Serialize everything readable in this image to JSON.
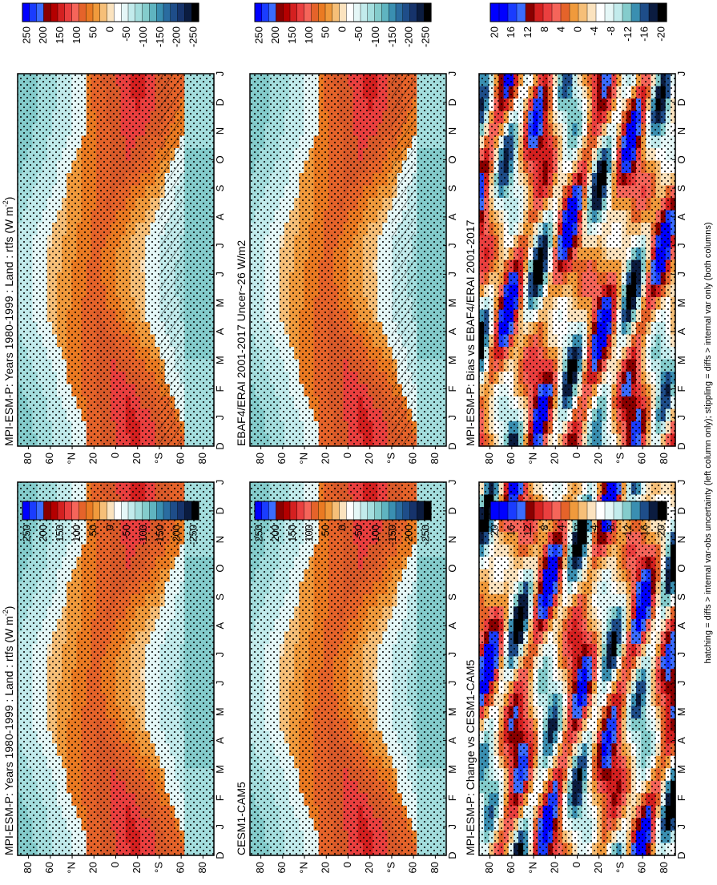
{
  "chart_data": [
    {
      "type": "heatmap",
      "id": "p1",
      "title": "MPI-ESM-P: Years 1980-1999 : Land : rtfs (W m",
      "title_sup": "-2",
      "title_end": ")",
      "x_categories": [
        "D",
        "J",
        "F",
        "M",
        "A",
        "M",
        "J",
        "J",
        "A",
        "S",
        "O",
        "N",
        "D",
        "J"
      ],
      "y_ticks": [
        "80",
        "60",
        "°N",
        "20",
        "0",
        "20",
        "°S",
        "60",
        "80"
      ],
      "latitude_range": [
        -90,
        90
      ],
      "colorbar": {
        "ticks": [
          "250",
          "200",
          "150",
          "100",
          "50",
          "0",
          "-50",
          "-100",
          "-150",
          "-200",
          "-250"
        ]
      },
      "overlay": [
        "stippling",
        "hatching"
      ]
    },
    {
      "type": "heatmap",
      "id": "p2",
      "title": "MPI-ESM-P: Years 1980-1999 : Land : rtfs (W m",
      "title_sup": "-2",
      "title_end": ")",
      "x_categories": [
        "D",
        "J",
        "F",
        "M",
        "A",
        "M",
        "J",
        "J",
        "A",
        "S",
        "O",
        "N",
        "D",
        "J"
      ],
      "y_ticks": [
        "80",
        "60",
        "°N",
        "20",
        "0",
        "20",
        "°S",
        "60",
        "80"
      ],
      "latitude_range": [
        -90,
        90
      ],
      "colorbar": {
        "ticks": [
          "250",
          "200",
          "150",
          "100",
          "50",
          "0",
          "-50",
          "-100",
          "-150",
          "-200",
          "-250"
        ]
      },
      "overlay": [
        "stippling"
      ]
    },
    {
      "type": "heatmap",
      "id": "p3",
      "title": "EBAF4/ERAI 2001-2017 Uncer~26 W/m2",
      "x_categories": [
        "D",
        "J",
        "F",
        "M",
        "A",
        "M",
        "J",
        "J",
        "A",
        "S",
        "O",
        "N",
        "D",
        "J"
      ],
      "y_ticks": [
        "80",
        "60",
        "°N",
        "20",
        "0",
        "20",
        "°S",
        "60",
        "80"
      ],
      "latitude_range": [
        -90,
        90
      ],
      "colorbar": {
        "ticks": [
          "250",
          "200",
          "150",
          "100",
          "50",
          "0",
          "-50",
          "-100",
          "-150",
          "-200",
          "-250"
        ]
      },
      "overlay": [
        "stippling",
        "hatching"
      ]
    },
    {
      "type": "heatmap",
      "id": "p4",
      "title": "CESM1-CAM5",
      "x_categories": [
        "D",
        "J",
        "F",
        "M",
        "A",
        "M",
        "J",
        "J",
        "A",
        "S",
        "O",
        "N",
        "D",
        "J"
      ],
      "y_ticks": [
        "80",
        "60",
        "°N",
        "20",
        "0",
        "20",
        "°S",
        "60",
        "80"
      ],
      "latitude_range": [
        -90,
        90
      ],
      "colorbar": {
        "ticks": [
          "250",
          "200",
          "150",
          "100",
          "50",
          "0",
          "-50",
          "-100",
          "-150",
          "-200",
          "-250"
        ]
      },
      "overlay": [
        "stippling"
      ]
    },
    {
      "type": "heatmap",
      "id": "p5",
      "title": "MPI-ESM-P: Bias vs EBAF4/ERAI 2001-2017",
      "x_categories": [
        "D",
        "J",
        "F",
        "M",
        "A",
        "M",
        "J",
        "J",
        "A",
        "S",
        "O",
        "N",
        "D",
        "J"
      ],
      "y_ticks": [
        "80",
        "60",
        "°N",
        "20",
        "0",
        "20",
        "°S",
        "60",
        "80"
      ],
      "latitude_range": [
        -90,
        90
      ],
      "colorbar": {
        "ticks": [
          "20",
          "16",
          "12",
          "8",
          "4",
          "0",
          "-4",
          "-8",
          "-12",
          "-16",
          "-20"
        ]
      },
      "overlay": [
        "stippling"
      ]
    },
    {
      "type": "heatmap",
      "id": "p6",
      "title": "MPI-ESM-P: Change vs CESM1-CAM5",
      "x_categories": [
        "D",
        "J",
        "F",
        "M",
        "A",
        "M",
        "J",
        "J",
        "A",
        "S",
        "O",
        "N",
        "D",
        "J"
      ],
      "y_ticks": [
        "80",
        "60",
        "°N",
        "20",
        "0",
        "20",
        "°S",
        "60",
        "80"
      ],
      "latitude_range": [
        -90,
        90
      ],
      "colorbar": {
        "ticks": [
          "20",
          "16",
          "12",
          "8",
          "4",
          "0",
          "-4",
          "-8",
          "-12",
          "-16",
          "-20"
        ]
      },
      "overlay": [
        "stippling"
      ]
    }
  ],
  "colors": {
    "palette_pos_to_neg": [
      "#0000ff",
      "#1a3cff",
      "#3a6cff",
      "#8b0000",
      "#b40000",
      "#d42020",
      "#ea3f3f",
      "#f5655a",
      "#e5632a",
      "#ea7a22",
      "#f09a3c",
      "#f6bf78",
      "#fbe3bf",
      "#ffffff",
      "#e5f7f7",
      "#c2ebec",
      "#a4dede",
      "#84cccc",
      "#5fb4c0",
      "#3a8fb1",
      "#2a6ca0",
      "#1e4d89",
      "#16336b",
      "#0b1c40",
      "#000000"
    ],
    "frame": "#000000"
  },
  "footnote": "hatching = diffs > internal var-obs uncertainty (left column only); stippling = diffs > internal var only (both columns)"
}
